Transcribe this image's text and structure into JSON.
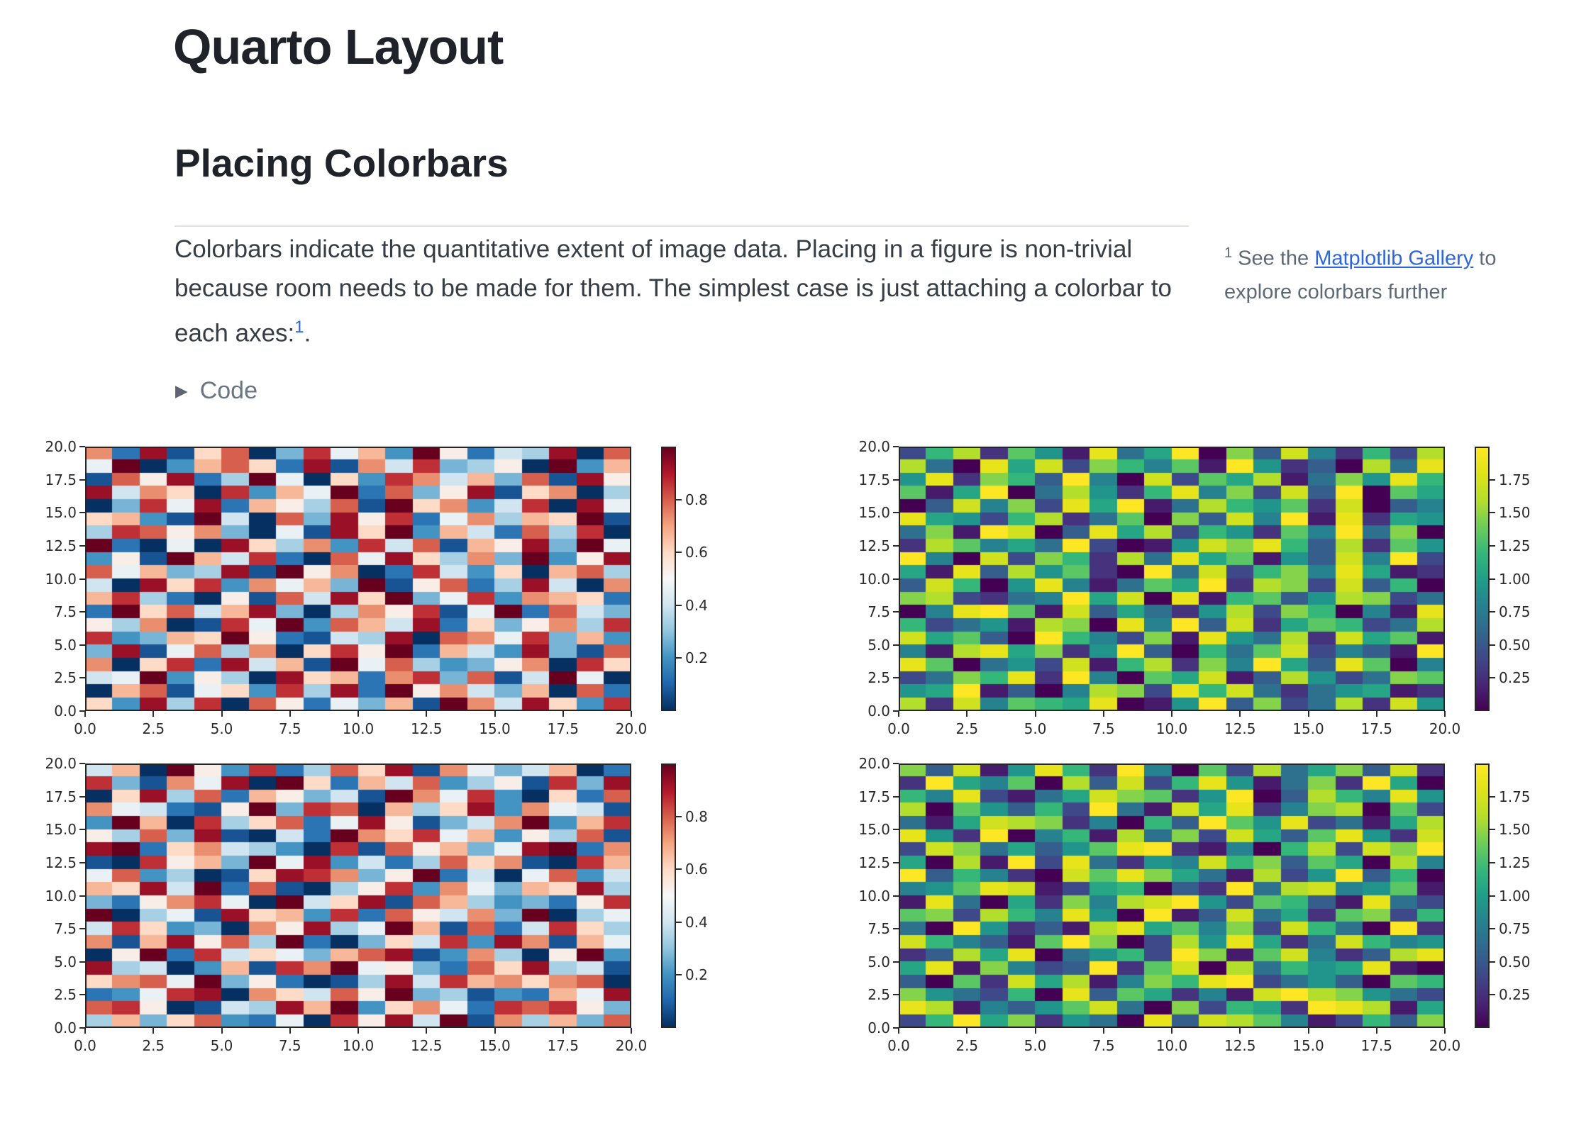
{
  "page": {
    "title": "Quarto Layout",
    "section_heading": "Placing Colorbars",
    "paragraph": "Colorbars indicate the quantitative extent of image data. Placing in a figure is non-trivial because room needs to be made for them. The simplest case is just attaching a colorbar to each axes:",
    "paragraph_footnote_ref": "1",
    "paragraph_end": ".",
    "code_toggle_label": "Code",
    "footnote": {
      "marker": "1",
      "text_before_link": " See the ",
      "link_text": "Matplotlib Gallery",
      "text_after_link": " to explore colorbars further"
    },
    "colors": {
      "heading": "#1f2329",
      "body": "#373d44",
      "muted": "#5d6876",
      "link": "#2b66dd",
      "divider": "#dfe3e7",
      "plot_text": "#2b2b2b",
      "spine": "#262626"
    }
  },
  "chart_data": [
    {
      "type": "heatmap",
      "grid_position": "top-left",
      "colormap": "RdBu_r",
      "vmin": 0,
      "vmax": 1,
      "x_axis": {
        "min": 0,
        "max": 20,
        "tick_values": [
          0,
          2.5,
          5,
          7.5,
          10,
          12.5,
          15,
          17.5,
          20
        ],
        "tick_labels": [
          "0.0",
          "2.5",
          "5.0",
          "7.5",
          "10.0",
          "12.5",
          "15.0",
          "17.5",
          "20.0"
        ]
      },
      "y_axis": {
        "min": 0,
        "max": 20,
        "tick_values": [
          20,
          17.5,
          15,
          12.5,
          10,
          7.5,
          5,
          2.5,
          0
        ],
        "tick_labels": [
          "20.0",
          "17.5",
          "15.0",
          "12.5",
          "10.0",
          "7.5",
          "5.0",
          "2.5",
          "0.0"
        ]
      },
      "colorbar": {
        "tick_values": [
          0.8,
          0.6,
          0.4,
          0.2
        ],
        "tick_labels": [
          "0.8",
          "0.6",
          "0.4",
          "0.2"
        ]
      },
      "grid_size": {
        "rows": 20,
        "cols": 20
      },
      "cell_encoding": "hex digit d -> value = vmin + (d/15)*(vmax-vmin), rows listed top to bottom",
      "cell_values_hex": [
        "b2e19c04d7a3f8265e0c",
        "7f03ac92e1b6d4580f3a",
        "1c8e25f7093db6a4c1e8",
        "e6b90d3a7f2c48e19b05",
        "04d7e2a85c1f9b36d0e7",
        "9a31f60c4e8d27b5a9f1",
        "5dc8b4071e9f3a62c5d0",
        "f2070e95b3d6c1a8e4f7",
        "381fa6d20c7e95b4f38e",
        "c7a45e1f8b02d6390ac5",
        "60e9d3b7a4f18c25e60b",
        "ad52081c6e9f47d3ba92",
        "2f9c6ae405b8d17f2c64",
        "85b01d7f3ca6e2948b5d",
        "d34a9f82165e0cb7d4a3",
        "4e17c5b09d8f2a63e41c",
        "b09d2e6a1f7c5348b0d9",
        "67f3850e9a2bd4c16f70",
        "0ac1793d5e2f8b64a0c2",
        "93e5d0c8274a1fb6e93d"
      ]
    },
    {
      "type": "heatmap",
      "grid_position": "top-right",
      "colormap": "viridis",
      "vmin": 0,
      "vmax": 2,
      "x_axis": {
        "min": 0,
        "max": 20,
        "tick_values": [
          0,
          2.5,
          5,
          7.5,
          10,
          12.5,
          15,
          17.5,
          20
        ],
        "tick_labels": [
          "0.0",
          "2.5",
          "5.0",
          "7.5",
          "10.0",
          "12.5",
          "15.0",
          "17.5",
          "20.0"
        ]
      },
      "y_axis": {
        "min": 0,
        "max": 20,
        "tick_values": [
          20,
          17.5,
          15,
          12.5,
          10,
          7.5,
          5,
          2.5,
          0
        ],
        "tick_labels": [
          "20.0",
          "17.5",
          "15.0",
          "12.5",
          "10.0",
          "7.5",
          "5.0",
          "2.5",
          "0.0"
        ]
      },
      "colorbar": {
        "tick_values": [
          1.75,
          1.5,
          1.25,
          1.0,
          0.75,
          0.5,
          0.25
        ],
        "tick_labels": [
          "1.75",
          "1.50",
          "1.25",
          "1.00",
          "0.75",
          "0.50",
          "0.25"
        ]
      },
      "grid_size": {
        "rows": 20,
        "cols": 20
      },
      "cell_encoding": "hex digit d -> value = vmin + (d/15)*(vmax-vmin), rows listed top to bottom",
      "cell_values_hex": [
        "39c2a71e58f0b4d6293c",
        "c50e8d3b96a1f7240c5e",
        "7e2b94f60d3a8c15b7e9",
        "a18f05c729e6b3d4f0a8",
        "04d6b3e8f15c97a2d046",
        "e8739c25a0b4d6f1e287",
        "5b1fd04e8c3972a6f5b0",
        "2ca685f3017dbe94c2a7",
        "f60d3b92c5e8a174d6f3",
        "81e4c7a20f5d39b6e812",
        "4d907e615a8f2cb3d490",
        "bc3256f8d0e19a47cb35",
        "06efa1d48527c3b9061e",
        "93571cb0e6f4d28a935c",
        "d8a40f963b1e75c2d8a1",
        "61ce8b27f4095ad3641f",
        "ea0573d19c2b6f84ea06",
        "35b9e2f60a8d14c735ba",
        "78f1406cb3e9d5257812",
        "c2d6a98e017f4b35c2d7"
      ]
    },
    {
      "type": "heatmap",
      "grid_position": "bottom-left",
      "colormap": "RdBu_r",
      "vmin": 0,
      "vmax": 1,
      "x_axis": {
        "min": 0,
        "max": 20,
        "tick_values": [
          0,
          2.5,
          5,
          7.5,
          10,
          12.5,
          15,
          17.5,
          20
        ],
        "tick_labels": [
          "0.0",
          "2.5",
          "5.0",
          "7.5",
          "10.0",
          "12.5",
          "15.0",
          "17.5",
          "20.0"
        ]
      },
      "y_axis": {
        "min": 0,
        "max": 20,
        "tick_values": [
          20,
          17.5,
          15,
          12.5,
          10,
          7.5,
          5,
          2.5,
          0
        ],
        "tick_labels": [
          "20.0",
          "17.5",
          "15.0",
          "12.5",
          "10.0",
          "7.5",
          "5.0",
          "2.5",
          "0.0"
        ]
      },
      "colorbar": {
        "tick_values": [
          0.8,
          0.6,
          0.4,
          0.2
        ],
        "tick_labels": [
          "0.8",
          "0.6",
          "0.4",
          "0.2"
        ]
      },
      "grid_size": {
        "rows": 20,
        "cols": 20
      },
      "cell_encoding": "hex digit d -> value = vmin + (d/15)*(vmax-vmin), rows listed top to bottom",
      "cell_values_hex": [
        "6a0f83d25c9e1b746a02",
        "d41b7e0f92a6c3581d4e",
        "09e5c2a8461fb7d3092c",
        "b76218f4dc0a59e3b761",
        "3fa0d59c27e8146bf3ad",
        "85c4e1062fb9d7a385c1",
        "ef29b6530d1c8a47ef2b",
        "10d8a4f7e3625c9b10da",
        "7c35019edb48f2607c36",
        "a9e6f2c1058d3b74a9e5",
        "428bd70f69e1ca53428d",
        "f0571e9a3d2c86b4f057",
        "6d9340b8e57fa1c26d95",
        "b1ae8c5f20496d3eb1a7",
        "08f2d6974ace13b508f3",
        "e5603a1dbf7842c9e561",
        "9bc7f482015e6dab9bc0",
        "237de0b96c8f45132a7e",
        "cd80165eaf39b72dcd84",
        "5a49c3270d8e6f1b5a4c"
      ]
    },
    {
      "type": "heatmap",
      "grid_position": "bottom-right",
      "colormap": "viridis",
      "vmin": 0,
      "vmax": 2,
      "x_axis": {
        "min": 0,
        "max": 20,
        "tick_values": [
          0,
          2.5,
          5,
          7.5,
          10,
          12.5,
          15,
          17.5,
          20
        ],
        "tick_labels": [
          "0.0",
          "2.5",
          "5.0",
          "7.5",
          "10.0",
          "12.5",
          "15.0",
          "17.5",
          "20.0"
        ]
      },
      "y_axis": {
        "min": 0,
        "max": 20,
        "tick_values": [
          20,
          17.5,
          15,
          12.5,
          10,
          7.5,
          5,
          2.5,
          0
        ],
        "tick_labels": [
          "20.0",
          "17.5",
          "15.0",
          "12.5",
          "10.0",
          "7.5",
          "5.0",
          "2.5",
          "0.0"
        ]
      },
      "colorbar": {
        "tick_values": [
          1.75,
          1.5,
          1.25,
          1.0,
          0.75,
          0.5,
          0.25
        ],
        "tick_labels": [
          "1.75",
          "1.50",
          "1.25",
          "1.00",
          "0.75",
          "0.50",
          "0.25"
        ]
      },
      "grid_size": {
        "rows": 20,
        "cols": 20
      },
      "cell_encoding": "hex digit d -> value = vmin + (d/15)*(vmax-vmin), rows listed top to bottom",
      "cell_values_hex": [
        "b4d17e92f60a3c58b4d2",
        "2f86a0c4d39e715b2f80",
        "96e3158dba27f04c96e7",
        "c0a7493f51d8e26bc0a3",
        "518dcb26094fa7e3518c",
        "e72f0691c5b3d84ae72d",
        "3db5847aef21609c3dbf",
        "80c1f3e5276d9b4a80c6",
        "f49620daeb851c37f490",
        "67aed1389042f5cd67a1",
        "1e5082b6cdf73a941e53",
        "ab3c96e70f14d582ab39",
        "50f7241ce8a6b3d950f2",
        "d9641afb03c7e825d967",
        "24c8e05793fb1ad624ce",
        "8e1b634f2ad0c5978e10",
        "40a2d8c16b9ef35740a9",
        "b75390e4a8261dfcb753",
        "ec1647ad50b3982fec18",
        "39f8b2750e4dca61394b"
      ]
    }
  ]
}
